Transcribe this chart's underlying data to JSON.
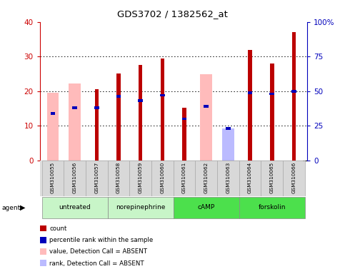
{
  "title": "GDS3702 / 1382562_at",
  "samples": [
    "GSM310055",
    "GSM310056",
    "GSM310057",
    "GSM310058",
    "GSM310059",
    "GSM310060",
    "GSM310061",
    "GSM310062",
    "GSM310063",
    "GSM310064",
    "GSM310065",
    "GSM310066"
  ],
  "red_values": [
    0,
    0,
    20.5,
    25.0,
    27.5,
    29.5,
    15.2,
    0,
    0,
    32.0,
    28.0,
    37.0
  ],
  "pink_values": [
    19.5,
    22.2,
    0,
    0,
    0,
    0,
    0,
    24.8,
    0,
    0,
    0,
    0
  ],
  "lightblue_values": [
    0,
    0,
    0,
    0,
    0,
    0,
    0,
    0,
    9.2,
    0,
    0,
    0
  ],
  "blue_pct": [
    34,
    38,
    38,
    46,
    43,
    47,
    30,
    39,
    23,
    49,
    48,
    50
  ],
  "groups": [
    {
      "label": "untreated",
      "start": 0,
      "end": 3
    },
    {
      "label": "norepinephrine",
      "start": 3,
      "end": 6
    },
    {
      "label": "cAMP",
      "start": 6,
      "end": 9
    },
    {
      "label": "forskolin",
      "start": 9,
      "end": 12
    }
  ],
  "group_colors": [
    "#c8f5c8",
    "#c8f5c8",
    "#4ce04c",
    "#4ce04c"
  ],
  "ylim_left": [
    0,
    40
  ],
  "ylim_right": [
    0,
    100
  ],
  "yticks_left": [
    0,
    10,
    20,
    30,
    40
  ],
  "yticks_right": [
    0,
    25,
    50,
    75,
    100
  ],
  "left_tick_color": "#cc0000",
  "right_tick_color": "#0000bb",
  "red_color": "#bb0000",
  "pink_color": "#ffbbbb",
  "blue_color": "#0000bb",
  "lightblue_color": "#bbbbff",
  "legend_items": [
    {
      "color": "#bb0000",
      "label": "count"
    },
    {
      "color": "#0000bb",
      "label": "percentile rank within the sample"
    },
    {
      "color": "#ffbbbb",
      "label": "value, Detection Call = ABSENT"
    },
    {
      "color": "#bbbbff",
      "label": "rank, Detection Call = ABSENT"
    }
  ]
}
